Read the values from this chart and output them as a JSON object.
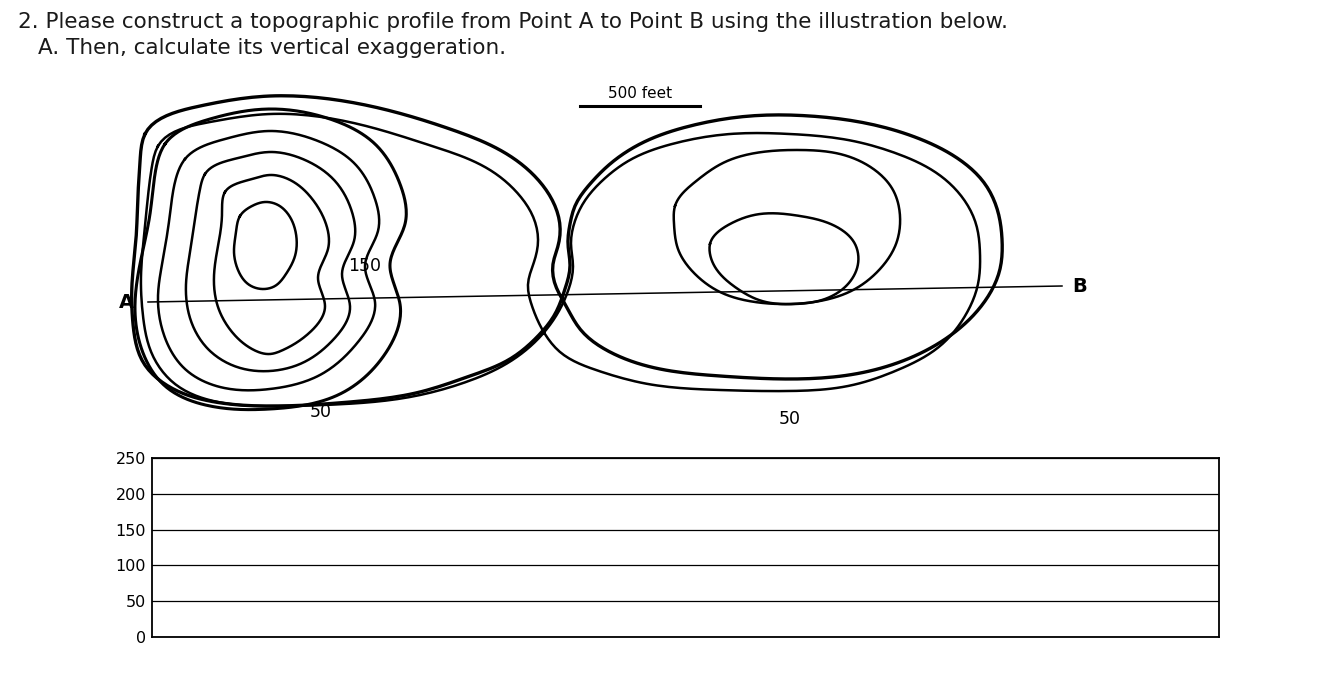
{
  "title_line1": "2. Please construct a topographic profile from Point A to Point B using the illustration below.",
  "title_line2": "A. Then, calculate its vertical exaggeration.",
  "scale_label": "500 feet",
  "label_150": "150",
  "label_50_left": "50",
  "label_50_right": "50",
  "label_A": "A",
  "label_B": "B",
  "yticks": [
    0,
    50,
    100,
    150,
    200,
    250
  ],
  "bg_color": "#ffffff",
  "contour_color": "#000000",
  "text_color": "#1a1a1a",
  "lw_outer": 2.2,
  "lw_inner": 1.8
}
